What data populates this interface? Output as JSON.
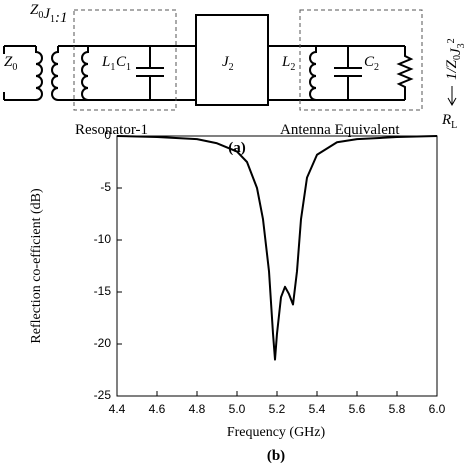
{
  "circuit": {
    "labels": {
      "z0": [
        {
          "t": "Z",
          "sub": "0"
        }
      ],
      "transformer": [
        {
          "t": "Z",
          "sub": "0"
        },
        {
          "t": "J",
          "sub": "1"
        },
        {
          "t": ":1"
        }
      ],
      "l1": [
        {
          "t": "L",
          "sub": "1"
        }
      ],
      "c1": [
        {
          "t": "C",
          "sub": "1"
        }
      ],
      "j2": [
        {
          "t": "J",
          "sub": "2"
        }
      ],
      "l2": [
        {
          "t": "L",
          "sub": "2"
        }
      ],
      "c2": [
        {
          "t": "C",
          "sub": "2"
        }
      ],
      "load": [
        {
          "t": "1/Z",
          "sub": "0"
        },
        {
          "t": "J",
          "sub": "3",
          "sup": "2"
        }
      ],
      "rl": [
        {
          "t": "R",
          "sub": "L"
        }
      ]
    },
    "resonator_label": "Resonator-1",
    "antenna_label": "Antenna Equivalent",
    "caption": "(a)"
  },
  "chart_data": {
    "type": "line",
    "caption": "(b)",
    "x_label": "Frequency (GHz)",
    "y_label": "Reflection co-efficient (dB)",
    "xlim": [
      4.4,
      6.0
    ],
    "ylim": [
      -25,
      0
    ],
    "xticks": [
      4.4,
      4.6,
      4.8,
      {
        "value": 5,
        "label": "5.0"
      },
      5.2,
      5.4,
      5.6,
      5.8,
      {
        "value": 6,
        "label": "6.0"
      }
    ],
    "yticks": [
      0,
      -5,
      -10,
      -15,
      -20,
      -25
    ],
    "x": [
      4.4,
      4.6,
      4.8,
      4.9,
      5.0,
      5.05,
      5.1,
      5.13,
      5.16,
      5.18,
      5.19,
      5.2,
      5.22,
      5.24,
      5.26,
      5.28,
      5.3,
      5.32,
      5.35,
      5.4,
      5.5,
      5.6,
      5.8,
      6.0
    ],
    "series": [
      {
        "color": "#000000",
        "values": [
          0,
          -0.1,
          -0.3,
          -0.7,
          -1.5,
          -2.5,
          -5,
          -8,
          -13,
          -19,
          -21.5,
          -19,
          -15.5,
          -14.5,
          -15.2,
          -16.2,
          -13,
          -8,
          -4,
          -1.8,
          -0.6,
          -0.3,
          -0.1,
          0
        ]
      }
    ]
  }
}
